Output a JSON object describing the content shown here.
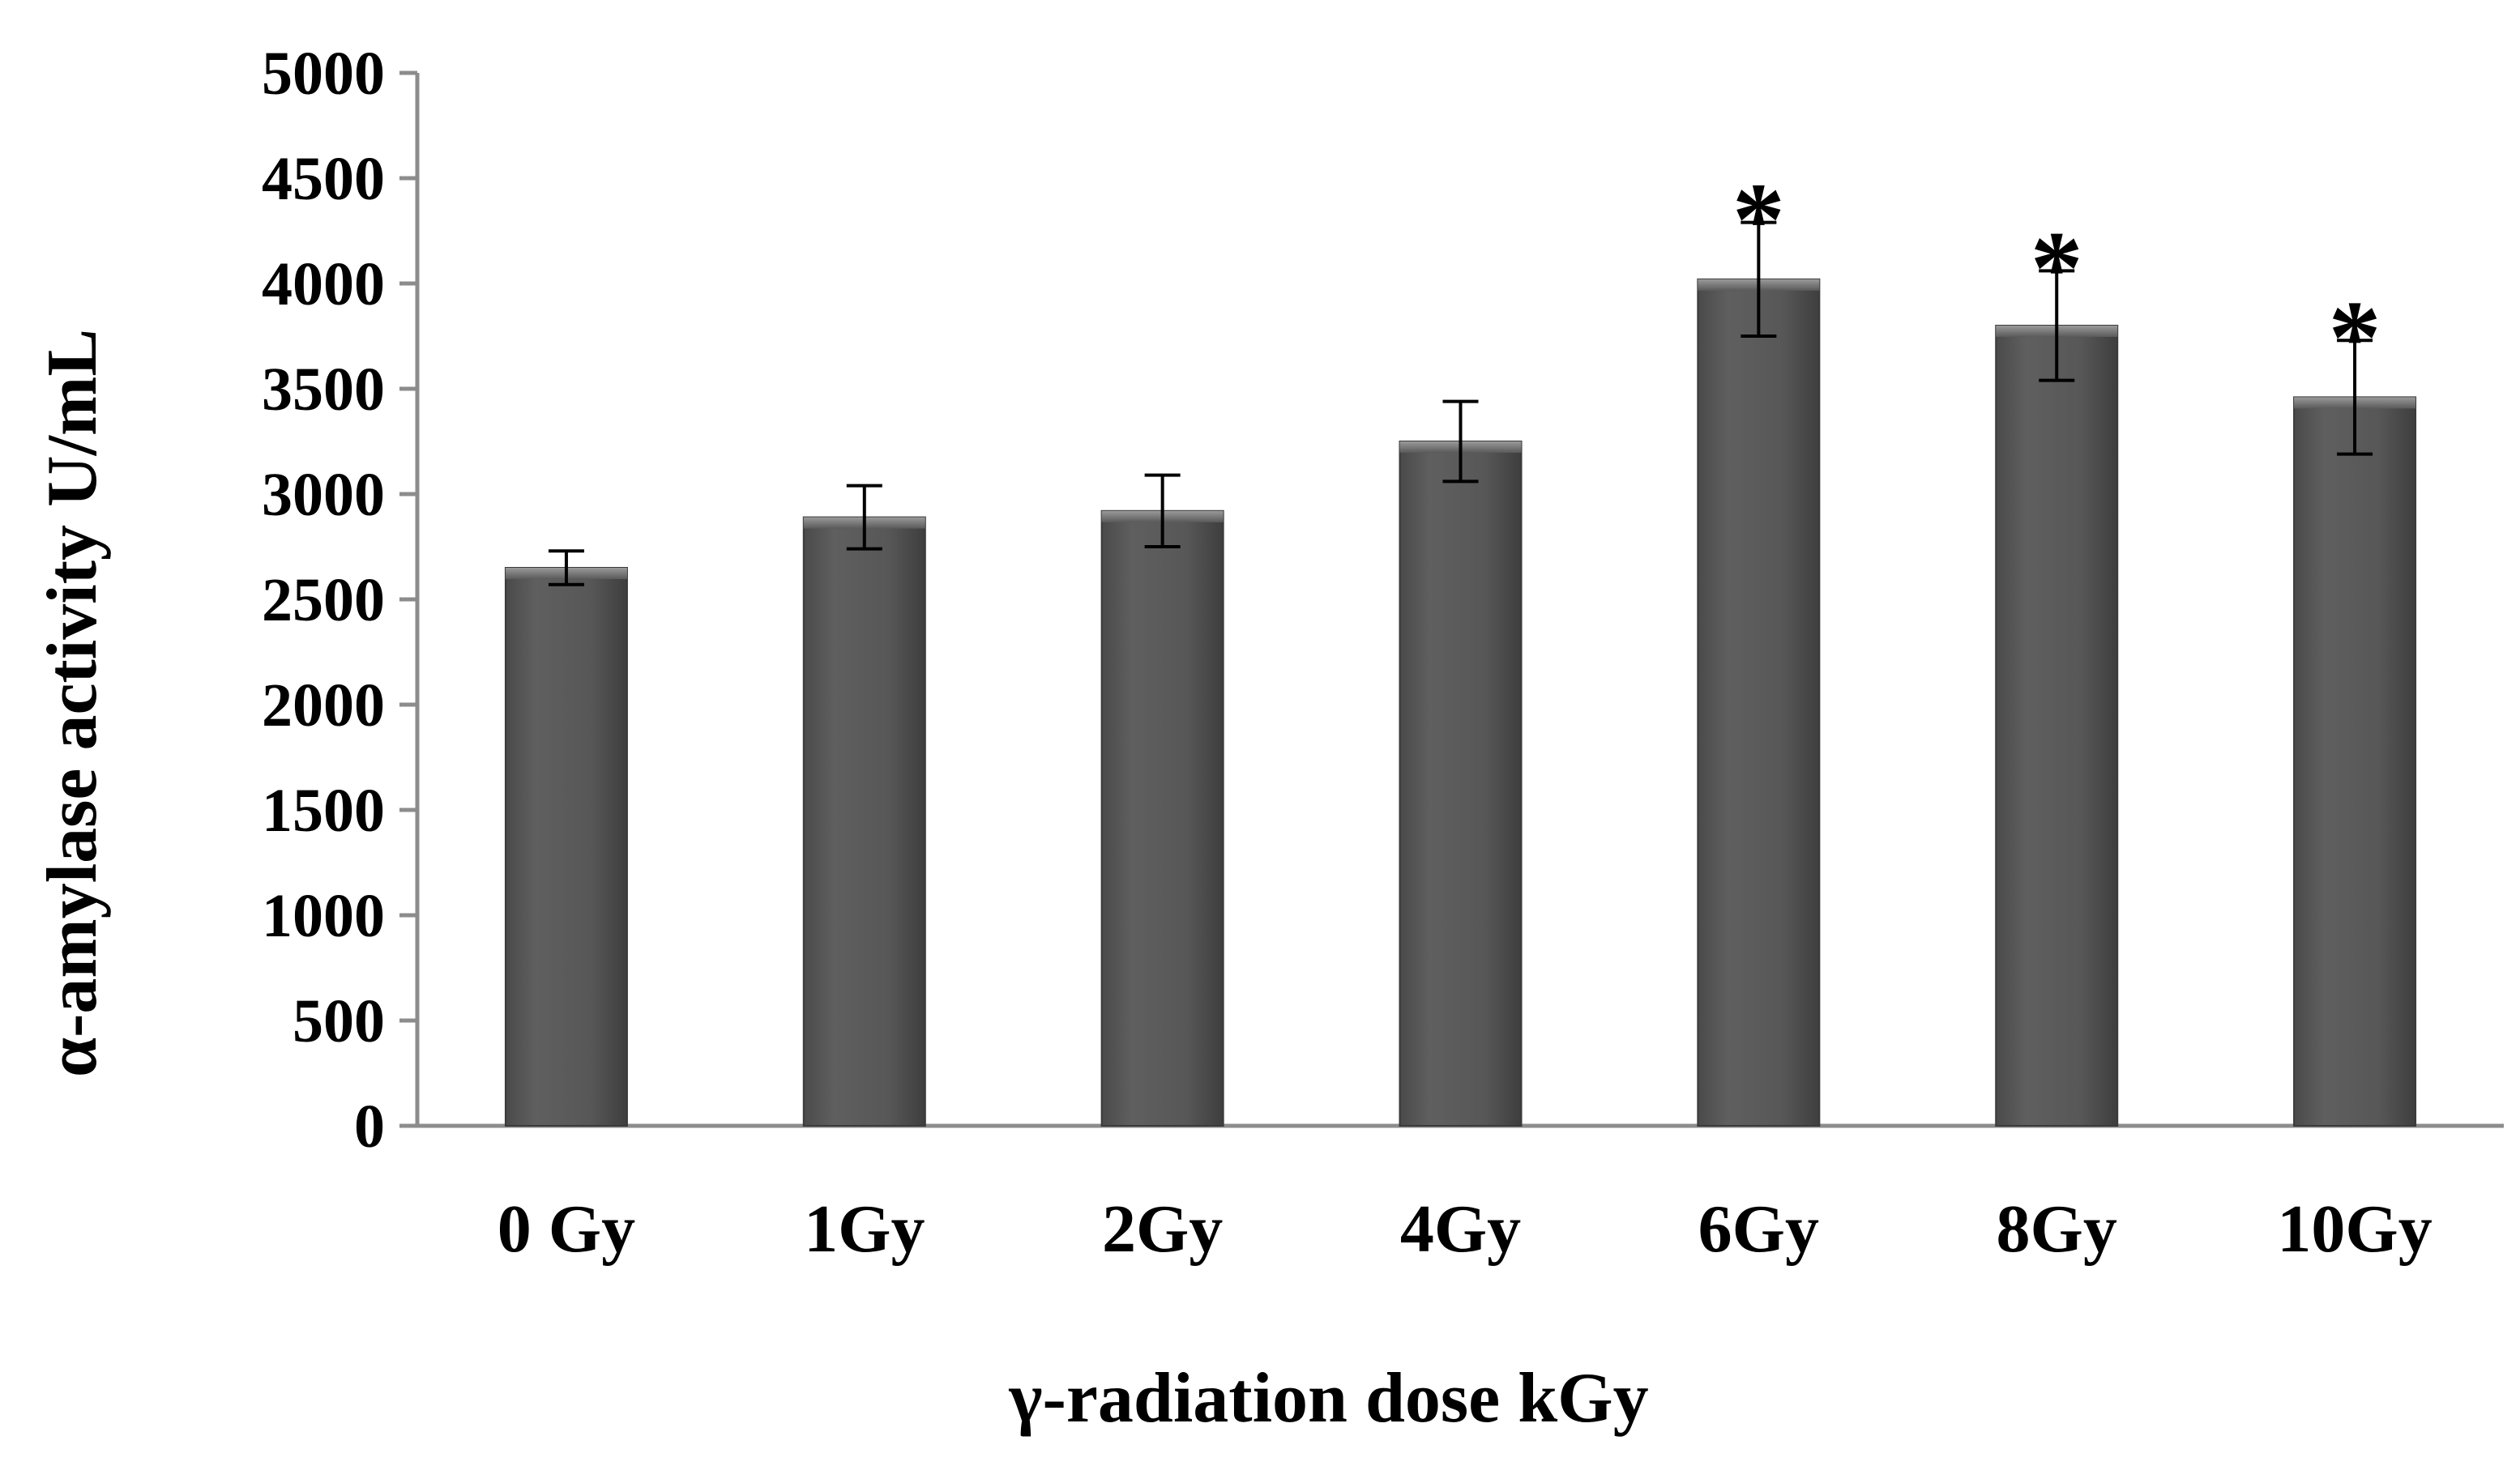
{
  "chart_data": {
    "type": "bar",
    "title": "",
    "xlabel": "γ-radiation  dose kGy",
    "ylabel": "α-amylase activity U/mL",
    "ylim": [
      0,
      5000
    ],
    "yticks": [
      0,
      500,
      1000,
      1500,
      2000,
      2500,
      3000,
      3500,
      4000,
      4500,
      5000
    ],
    "categories": [
      "0 Gy",
      "1Gy",
      "2Gy",
      "4Gy",
      "6Gy",
      "8Gy",
      "10Gy"
    ],
    "values": [
      2650,
      2890,
      2920,
      3250,
      4020,
      3800,
      3460
    ],
    "error": [
      80,
      150,
      170,
      190,
      270,
      260,
      270
    ],
    "significance": [
      "",
      "",
      "",
      "",
      "*",
      "*",
      "*"
    ],
    "grid": false,
    "legend": "none",
    "colors": {
      "bar": "#5a5a5a",
      "bar_edge": "#3a3a3a",
      "axis": "#8c8c8c",
      "error_bar": "#000000"
    }
  }
}
